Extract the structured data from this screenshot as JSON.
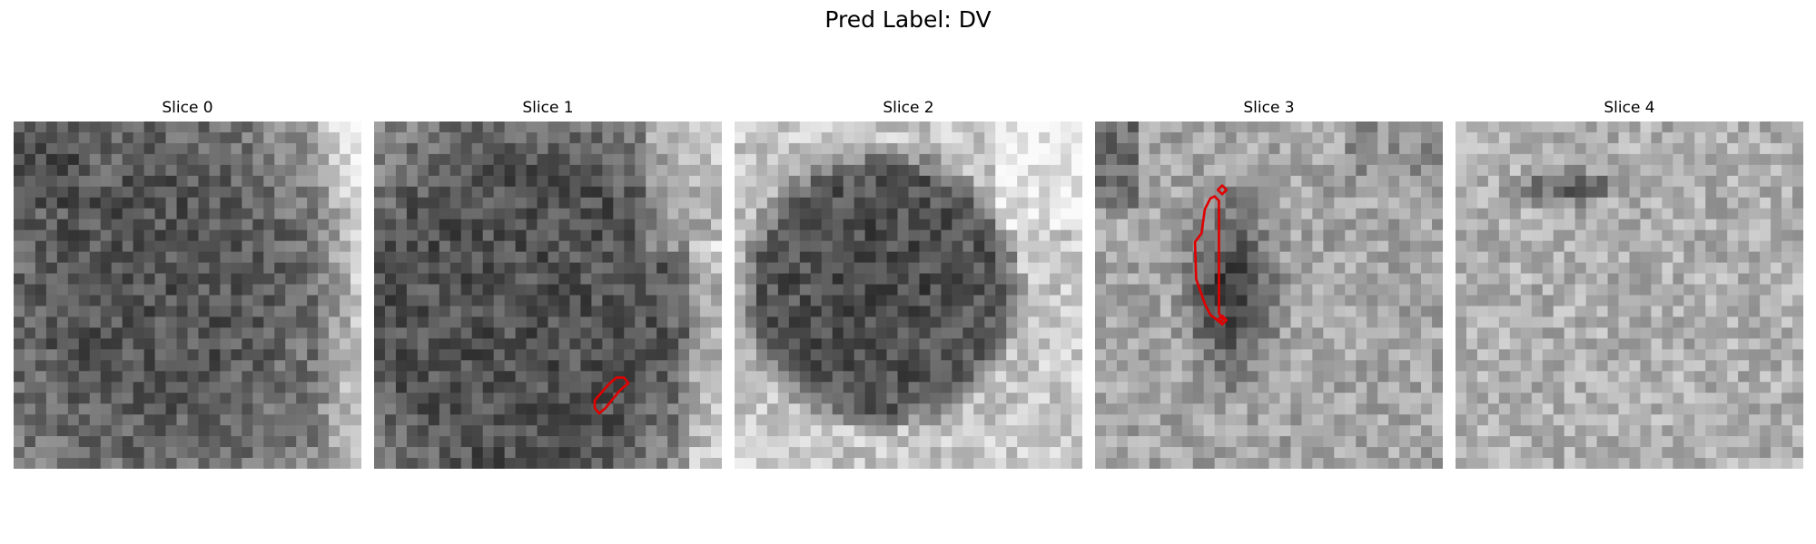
{
  "figure": {
    "title": "Pred Label: DV",
    "contour_color": "#e00000"
  },
  "panels": [
    {
      "title": "Slice 0"
    },
    {
      "title": "Slice 1"
    },
    {
      "title": "Slice 2"
    },
    {
      "title": "Slice 3"
    },
    {
      "title": "Slice 4"
    }
  ]
}
